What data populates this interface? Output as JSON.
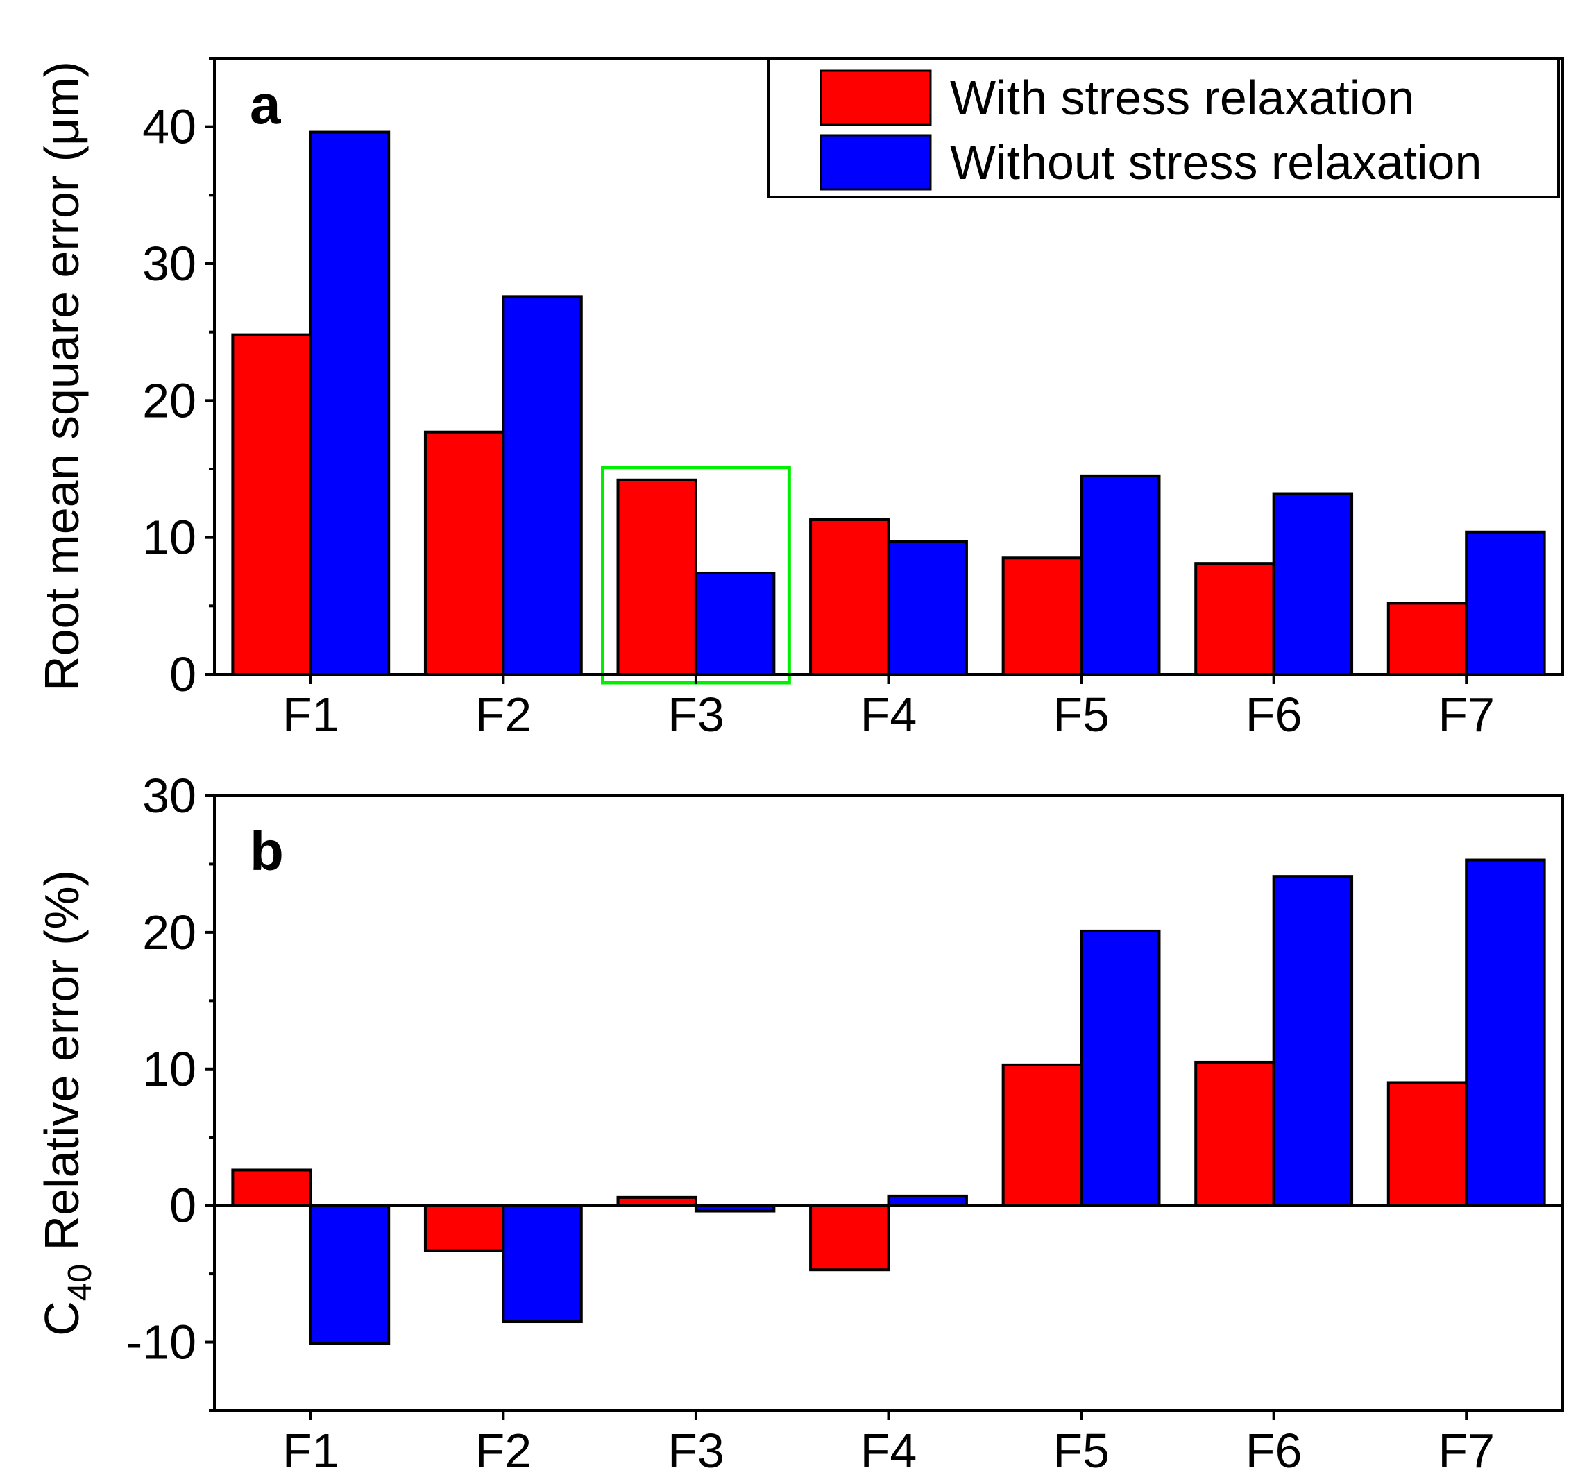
{
  "colors": {
    "with": "#ff0000",
    "without": "#0000ff",
    "highlight": "#00ee00"
  },
  "legend": {
    "with_label": "With stress relaxation",
    "without_label": "Without stress relaxation"
  },
  "chart_data": [
    {
      "type": "bar",
      "panel": "a",
      "ylabel": "Root mean square error (μm)",
      "categories": [
        "F1",
        "F2",
        "F3",
        "F4",
        "F5",
        "F6",
        "F7"
      ],
      "ylim": [
        0,
        45
      ],
      "yticks": [
        0,
        10,
        20,
        30,
        40
      ],
      "series": [
        {
          "name": "With stress relaxation",
          "values": [
            24.8,
            17.7,
            14.2,
            11.3,
            8.5,
            8.1,
            5.2
          ]
        },
        {
          "name": "Without stress relaxation",
          "values": [
            39.6,
            27.6,
            7.4,
            9.7,
            14.5,
            13.2,
            10.4
          ]
        }
      ],
      "highlight_category": "F3",
      "legend_position": "top-right"
    },
    {
      "type": "bar",
      "panel": "b",
      "ylabel_prefix": "C",
      "ylabel_sub": "40",
      "ylabel_rest": " Relative error (%)",
      "categories": [
        "F1",
        "F2",
        "F3",
        "F4",
        "F5",
        "F6",
        "F7"
      ],
      "ylim": [
        -15,
        30
      ],
      "yticks": [
        -10,
        0,
        10,
        20,
        30
      ],
      "series": [
        {
          "name": "With stress relaxation",
          "values": [
            2.6,
            -3.3,
            0.6,
            -4.7,
            10.3,
            10.5,
            9.0
          ]
        },
        {
          "name": "Without stress relaxation",
          "values": [
            -10.1,
            -8.5,
            -0.4,
            0.7,
            20.1,
            24.1,
            25.3
          ]
        }
      ]
    }
  ]
}
